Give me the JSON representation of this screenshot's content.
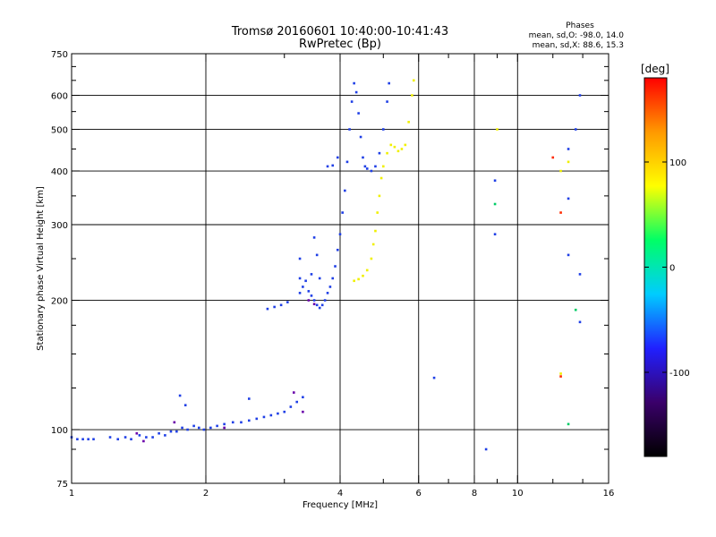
{
  "header": {
    "title_line1": "Tromsø 20160601 10:40:00-10:41:43",
    "title_line2": "RwPretec (Bp)",
    "stats_heading": "Phases",
    "stats_o": "mean, sd,O: -98.0, 14.0",
    "stats_x": "mean, sd,X:  88.6, 15.3"
  },
  "chart_data": {
    "type": "scatter",
    "title": "Tromsø 20160601 10:40:00-10:41:43",
    "subtitle": "RwPretec (Bp)",
    "xlabel": "Frequency [MHz]",
    "ylabel": "Stationary phase Virtual Height [km]",
    "x_scale": "log",
    "y_scale": "log",
    "xlim": [
      1,
      16
    ],
    "ylim": [
      75,
      750
    ],
    "x_ticks": [
      1,
      2,
      4,
      6,
      8,
      10,
      16
    ],
    "x_tick_labels": [
      "1",
      "2",
      "4",
      "6",
      "8",
      "10",
      "16"
    ],
    "x_minor_ticks": [
      3,
      5,
      7,
      9,
      12,
      14
    ],
    "y_ticks": [
      75,
      100,
      200,
      300,
      400,
      500,
      600,
      750
    ],
    "y_tick_labels": [
      "75",
      "100",
      "200",
      "300",
      "400",
      "500",
      "600",
      "750"
    ],
    "y_minor_ticks": [
      90,
      125,
      150,
      175,
      250,
      350,
      450,
      550,
      650,
      700
    ],
    "grid_x": [
      2,
      4,
      6,
      8,
      10
    ],
    "grid_y": [
      100,
      200,
      300,
      400,
      500,
      600
    ],
    "grid": true,
    "colorbar": {
      "label": "[deg]",
      "range": [
        -180,
        180
      ],
      "tick_values": [
        100,
        0,
        -100
      ],
      "tick_labels": [
        "100",
        "0",
        "-100"
      ],
      "colors": [
        "#000000",
        "#3a006a",
        "#2020ff",
        "#00ccff",
        "#00ff66",
        "#ffff00",
        "#ff9900",
        "#ff0000"
      ]
    },
    "series": [
      {
        "mode": "O",
        "phase_deg": -98,
        "color": "#1f3fe6",
        "points": [
          [
            1.0,
            96
          ],
          [
            1.03,
            95
          ],
          [
            1.06,
            95
          ],
          [
            1.09,
            95
          ],
          [
            1.12,
            95
          ],
          [
            1.22,
            96
          ],
          [
            1.27,
            95
          ],
          [
            1.32,
            96
          ],
          [
            1.36,
            95
          ],
          [
            1.42,
            97
          ],
          [
            1.47,
            96
          ],
          [
            1.52,
            96
          ],
          [
            1.57,
            98
          ],
          [
            1.62,
            97
          ],
          [
            1.67,
            99
          ],
          [
            1.72,
            99
          ],
          [
            1.77,
            101
          ],
          [
            1.82,
            100
          ],
          [
            1.88,
            102
          ],
          [
            1.93,
            101
          ],
          [
            1.98,
            100
          ],
          [
            2.05,
            101
          ],
          [
            2.12,
            102
          ],
          [
            2.2,
            103
          ],
          [
            2.3,
            104
          ],
          [
            2.4,
            104
          ],
          [
            2.5,
            105
          ],
          [
            2.6,
            106
          ],
          [
            2.7,
            107
          ],
          [
            2.8,
            108
          ],
          [
            2.9,
            109
          ],
          [
            3.0,
            110
          ],
          [
            3.1,
            113
          ],
          [
            3.2,
            116
          ],
          [
            3.3,
            119
          ],
          [
            1.75,
            120
          ],
          [
            1.8,
            114
          ],
          [
            2.5,
            118
          ],
          [
            2.75,
            191
          ],
          [
            2.85,
            193
          ],
          [
            2.95,
            195
          ],
          [
            3.05,
            198
          ],
          [
            3.25,
            208
          ],
          [
            3.25,
            225
          ],
          [
            3.25,
            250
          ],
          [
            3.3,
            215
          ],
          [
            3.35,
            222
          ],
          [
            3.4,
            210
          ],
          [
            3.45,
            205
          ],
          [
            3.5,
            200
          ],
          [
            3.55,
            195
          ],
          [
            3.6,
            192
          ],
          [
            3.65,
            195
          ],
          [
            3.7,
            200
          ],
          [
            3.75,
            208
          ],
          [
            3.8,
            215
          ],
          [
            3.85,
            225
          ],
          [
            3.9,
            240
          ],
          [
            3.95,
            262
          ],
          [
            4.0,
            285
          ],
          [
            4.05,
            320
          ],
          [
            4.1,
            360
          ],
          [
            4.15,
            420
          ],
          [
            4.2,
            500
          ],
          [
            4.25,
            580
          ],
          [
            4.3,
            640
          ],
          [
            3.45,
            230
          ],
          [
            3.5,
            280
          ],
          [
            3.55,
            255
          ],
          [
            3.6,
            225
          ],
          [
            4.35,
            610
          ],
          [
            4.4,
            545
          ],
          [
            4.45,
            480
          ],
          [
            4.5,
            430
          ],
          [
            4.55,
            410
          ],
          [
            4.6,
            405
          ],
          [
            4.7,
            400
          ],
          [
            4.8,
            410
          ],
          [
            4.9,
            440
          ],
          [
            5.0,
            500
          ],
          [
            5.1,
            580
          ],
          [
            5.15,
            640
          ],
          [
            3.75,
            410
          ],
          [
            3.85,
            412
          ],
          [
            3.95,
            430
          ],
          [
            6.5,
            132
          ],
          [
            8.5,
            90
          ],
          [
            8.9,
            380
          ],
          [
            8.9,
            285
          ],
          [
            13.0,
            450
          ],
          [
            13.0,
            345
          ],
          [
            13.0,
            255
          ],
          [
            13.5,
            500
          ],
          [
            13.8,
            230
          ],
          [
            13.8,
            178
          ],
          [
            13.8,
            600
          ]
        ]
      },
      {
        "mode": "X",
        "phase_deg": 88.6,
        "color": "#f0f000",
        "points": [
          [
            4.3,
            222
          ],
          [
            4.4,
            224
          ],
          [
            4.5,
            228
          ],
          [
            4.6,
            235
          ],
          [
            4.7,
            250
          ],
          [
            4.75,
            270
          ],
          [
            4.8,
            290
          ],
          [
            4.85,
            320
          ],
          [
            4.9,
            350
          ],
          [
            4.95,
            385
          ],
          [
            5.0,
            410
          ],
          [
            5.1,
            440
          ],
          [
            5.2,
            460
          ],
          [
            5.3,
            455
          ],
          [
            5.4,
            445
          ],
          [
            5.5,
            450
          ],
          [
            5.6,
            460
          ],
          [
            5.7,
            520
          ],
          [
            5.8,
            600
          ],
          [
            5.85,
            650
          ],
          [
            9.0,
            500
          ],
          [
            12.5,
            400
          ],
          [
            13.0,
            420
          ],
          [
            12.5,
            135
          ]
        ]
      },
      {
        "mode": "scattered",
        "phase_deg": 0,
        "color": "#00cc66",
        "points": [
          [
            8.9,
            335
          ],
          [
            13.0,
            103
          ],
          [
            13.5,
            190
          ]
        ]
      },
      {
        "mode": "scattered",
        "phase_deg": 170,
        "color": "#ff2a00",
        "points": [
          [
            12.0,
            430
          ],
          [
            12.5,
            320
          ],
          [
            12.5,
            133
          ]
        ]
      },
      {
        "mode": "scattered",
        "phase_deg": -150,
        "color": "#6a00aa",
        "points": [
          [
            1.4,
            98
          ],
          [
            1.45,
            94
          ],
          [
            1.7,
            104
          ],
          [
            2.2,
            101
          ],
          [
            3.15,
            122
          ],
          [
            3.3,
            110
          ],
          [
            3.4,
            200
          ],
          [
            3.5,
            196
          ]
        ]
      }
    ]
  }
}
